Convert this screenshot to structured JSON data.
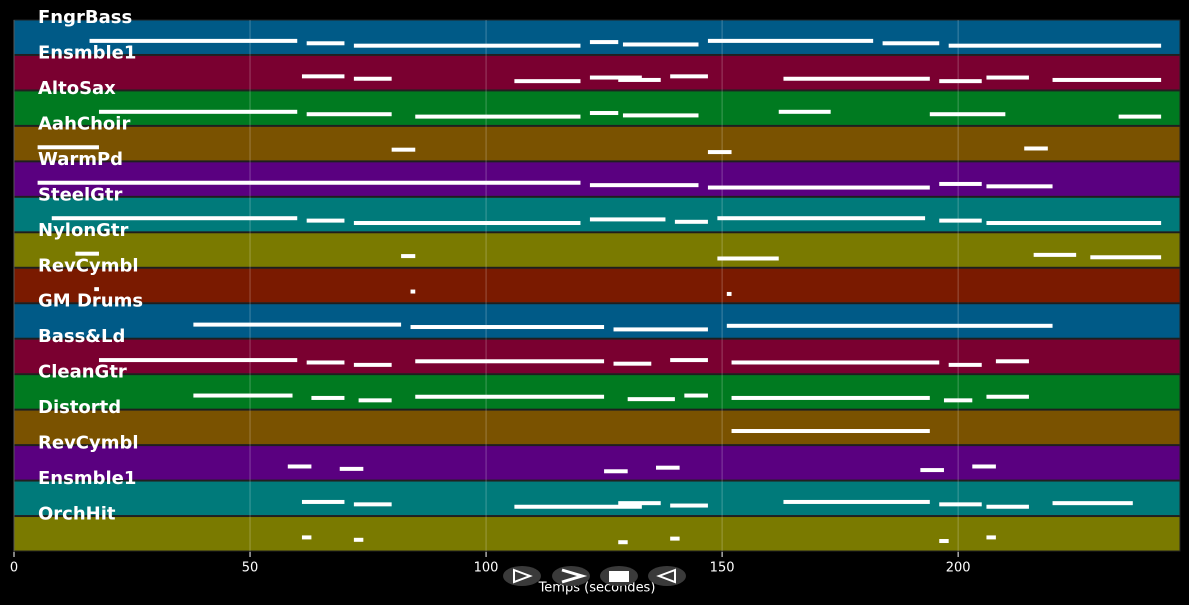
{
  "chart_data": {
    "type": "pianoroll",
    "xlabel": "Temps (secondes)",
    "xlim": [
      0,
      247
    ],
    "xticks": [
      0,
      50,
      100,
      150,
      200
    ],
    "grid": true,
    "tracks": [
      {
        "name": "FngrBass",
        "color": "#005a87",
        "notes": [
          [
            16,
            60
          ],
          [
            62,
            70
          ],
          [
            72,
            120
          ],
          [
            122,
            128
          ],
          [
            129,
            145
          ],
          [
            147,
            182
          ],
          [
            184,
            196
          ],
          [
            198,
            243
          ]
        ]
      },
      {
        "name": "Ensmble1",
        "color": "#7a0030",
        "notes": [
          [
            61,
            70
          ],
          [
            72,
            80
          ],
          [
            106,
            120
          ],
          [
            122,
            133
          ],
          [
            128,
            137
          ],
          [
            139,
            147
          ],
          [
            163,
            194
          ],
          [
            196,
            205
          ],
          [
            206,
            215
          ],
          [
            220,
            243
          ]
        ]
      },
      {
        "name": "AltoSax",
        "color": "#007a20",
        "notes": [
          [
            18,
            60
          ],
          [
            62,
            80
          ],
          [
            85,
            120
          ],
          [
            122,
            128
          ],
          [
            129,
            145
          ],
          [
            162,
            173
          ],
          [
            194,
            210
          ],
          [
            234,
            243
          ]
        ]
      },
      {
        "name": "AahChoir",
        "color": "#7a5200",
        "notes": [
          [
            5,
            18
          ],
          [
            80,
            85
          ],
          [
            147,
            152
          ],
          [
            214,
            219
          ]
        ]
      },
      {
        "name": "WarmPd",
        "color": "#5a0080",
        "notes": [
          [
            5,
            120
          ],
          [
            122,
            145
          ],
          [
            147,
            194
          ],
          [
            196,
            205
          ],
          [
            206,
            220
          ]
        ]
      },
      {
        "name": "SteelGtr",
        "color": "#007a7a",
        "notes": [
          [
            8,
            60
          ],
          [
            62,
            70
          ],
          [
            72,
            120
          ],
          [
            122,
            138
          ],
          [
            140,
            147
          ],
          [
            149,
            193
          ],
          [
            196,
            205
          ],
          [
            206,
            243
          ]
        ]
      },
      {
        "name": "NylonGtr",
        "color": "#7a7a00",
        "notes": [
          [
            13,
            18
          ],
          [
            82,
            85
          ],
          [
            149,
            162
          ],
          [
            216,
            225
          ],
          [
            228,
            243
          ]
        ]
      },
      {
        "name": "RevCymbl",
        "color": "#7a1a00",
        "notes": [
          [
            17,
            18
          ],
          [
            84,
            85
          ],
          [
            151,
            152
          ]
        ]
      },
      {
        "name": "GM Drums",
        "color": "#005a87",
        "notes": [
          [
            38,
            82
          ],
          [
            84,
            125
          ],
          [
            127,
            147
          ],
          [
            151,
            220
          ]
        ]
      },
      {
        "name": "Bass&Ld",
        "color": "#7a0030",
        "notes": [
          [
            18,
            60
          ],
          [
            62,
            70
          ],
          [
            72,
            80
          ],
          [
            85,
            125
          ],
          [
            127,
            135
          ],
          [
            139,
            147
          ],
          [
            152,
            196
          ],
          [
            198,
            205
          ],
          [
            208,
            215
          ]
        ]
      },
      {
        "name": "CleanGtr",
        "color": "#007a20",
        "notes": [
          [
            38,
            59
          ],
          [
            63,
            70
          ],
          [
            73,
            80
          ],
          [
            85,
            125
          ],
          [
            130,
            140
          ],
          [
            142,
            147
          ],
          [
            152,
            194
          ],
          [
            197,
            203
          ],
          [
            206,
            215
          ]
        ]
      },
      {
        "name": "Distortd",
        "color": "#7a5200",
        "notes": [
          [
            152,
            194
          ]
        ]
      },
      {
        "name": "RevCymbl",
        "color": "#5a0080",
        "notes": [
          [
            58,
            63
          ],
          [
            69,
            74
          ],
          [
            125,
            130
          ],
          [
            136,
            141
          ],
          [
            192,
            197
          ],
          [
            203,
            208
          ]
        ]
      },
      {
        "name": "Ensmble1",
        "color": "#007a7a",
        "notes": [
          [
            61,
            70
          ],
          [
            72,
            80
          ],
          [
            106,
            133
          ],
          [
            128,
            137
          ],
          [
            139,
            147
          ],
          [
            163,
            194
          ],
          [
            196,
            205
          ],
          [
            206,
            215
          ],
          [
            220,
            237
          ]
        ]
      },
      {
        "name": "OrchHit",
        "color": "#7a7a00",
        "notes": [
          [
            61,
            63
          ],
          [
            72,
            74
          ],
          [
            128,
            130
          ],
          [
            139,
            141
          ],
          [
            196,
            198
          ],
          [
            206,
            208
          ]
        ]
      }
    ]
  }
}
